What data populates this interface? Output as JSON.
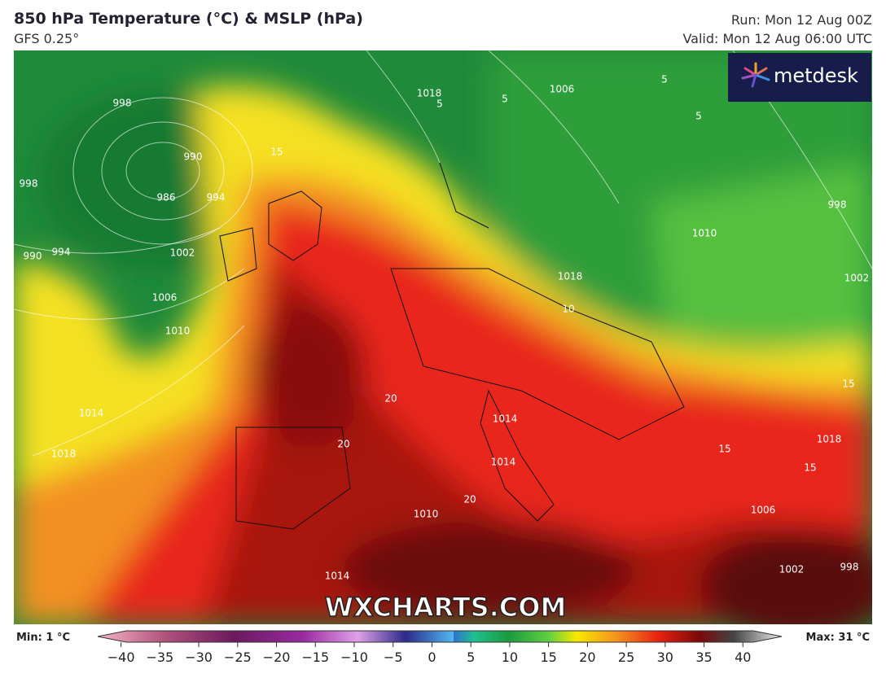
{
  "header": {
    "title": "850 hPa Temperature (°C) & MSLP (hPa)",
    "subtitle": "GFS 0.25°",
    "run": "Run: Mon 12 Aug 00Z",
    "valid": "Valid: Mon 12 Aug 06:00 UTC"
  },
  "logo": "metdesk",
  "watermark": "WXCHARTS.COM",
  "map": {
    "labels": [
      998,
      990,
      986,
      994,
      998,
      994,
      990,
      1002,
      1006,
      1010,
      1014,
      1018,
      15,
      1018,
      1018,
      5,
      5,
      1006,
      5,
      5,
      998,
      1010,
      1002,
      1018,
      10,
      15,
      20,
      20,
      1014,
      1014,
      20,
      1010,
      15,
      15,
      1006,
      1002,
      998,
      1014
    ]
  },
  "legend": {
    "min": "Min: 1 °C",
    "max": "Max: 31 °C",
    "ticks": [
      {
        "value": -40,
        "label": "−40"
      },
      {
        "value": -35,
        "label": "−35"
      },
      {
        "value": -30,
        "label": "−30"
      },
      {
        "value": -25,
        "label": "−25"
      },
      {
        "value": -20,
        "label": "−20"
      },
      {
        "value": -15,
        "label": "−15"
      },
      {
        "value": -10,
        "label": "−10"
      },
      {
        "value": -5,
        "label": "−5"
      },
      0,
      5,
      10,
      15,
      20,
      25,
      30,
      35,
      40
    ],
    "range": [
      -43,
      45
    ]
  }
}
